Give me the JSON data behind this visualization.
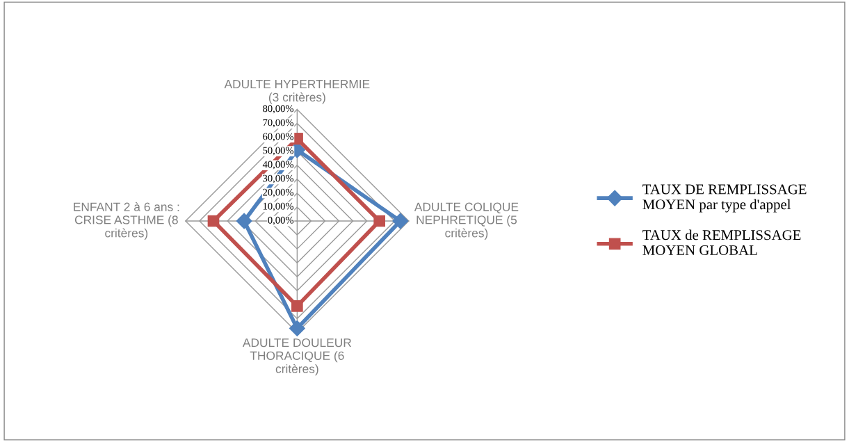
{
  "chart_data": {
    "type": "radar",
    "categories": [
      "ADULTE HYPERTHERMIE (3 critères)",
      "ADULTE COLIQUE NEPHRETIQUE (5 critères)",
      "ADULTE DOULEUR THORACIQUE (6 critères)",
      "ENFANT 2 à 6 ans : CRISE ASTHME (8 critères)"
    ],
    "series": [
      {
        "name": "TAUX DE REMPLISSAGE MOYEN par type d'appel",
        "color": "#4f81bd",
        "marker": "diamond",
        "values": [
          51,
          74,
          77,
          38
        ]
      },
      {
        "name": "TAUX de REMPLISSAGE MOYEN GLOBAL",
        "color": "#c0504d",
        "marker": "square",
        "values": [
          59,
          59,
          61,
          60
        ]
      }
    ],
    "ylim": [
      0,
      80
    ],
    "yticks": [
      {
        "value": 0,
        "label": "0,00%"
      },
      {
        "value": 10,
        "label": "10,00%"
      },
      {
        "value": 20,
        "label": "20,00%"
      },
      {
        "value": 30,
        "label": "30,00%"
      },
      {
        "value": 40,
        "label": "40,00%"
      },
      {
        "value": 50,
        "label": "50,00%"
      },
      {
        "value": 60,
        "label": "60,00%"
      },
      {
        "value": 70,
        "label": "70,00%"
      },
      {
        "value": 80,
        "label": "80,00%"
      }
    ],
    "grid": true,
    "legend": "right"
  }
}
